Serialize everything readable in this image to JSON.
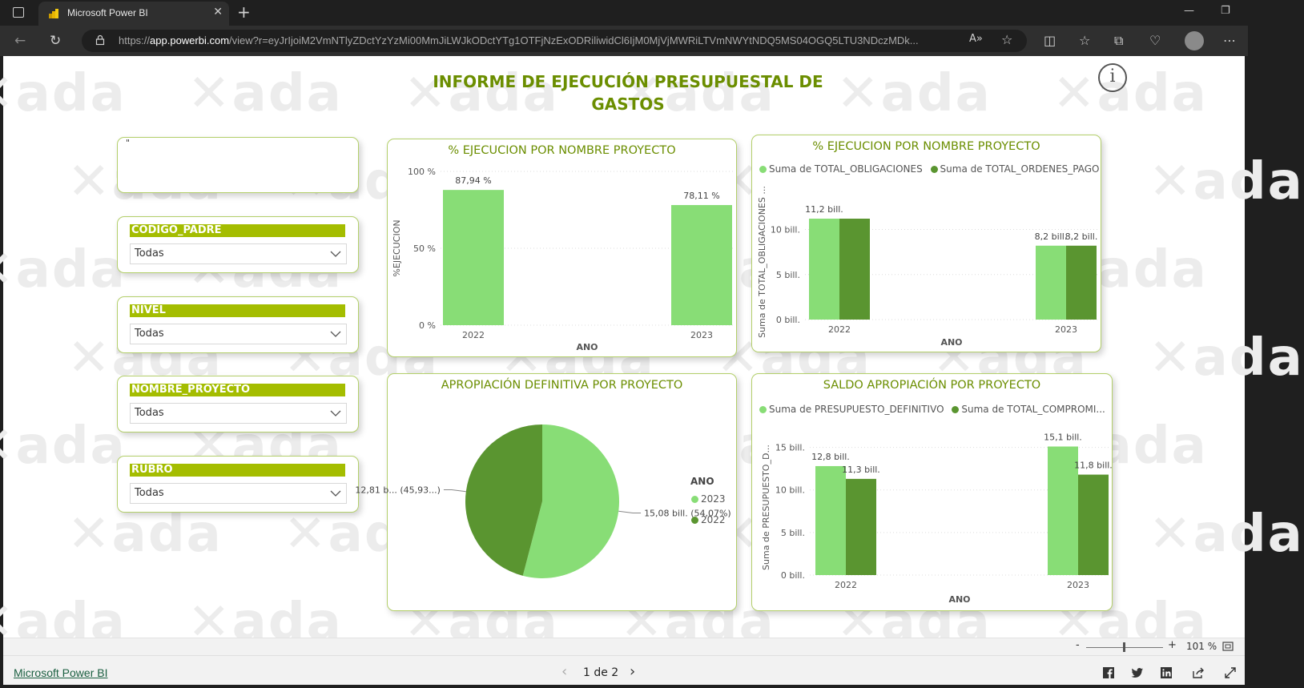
{
  "browser": {
    "tab_title": "Microsoft Power BI",
    "url_prefix": "https://",
    "url_host": "app.powerbi.com",
    "url_rest": "/view?r=eyJrIjoiM2VmNTlyZDctYzYzMi00MmJiLWJkODctYTg1OTFjNzExODRiliwidCl6IjM0MjVjMWRiLTVmNWYtNDQ5MS04OGQ5LTU3NDczMDk..."
  },
  "report": {
    "title_line1": "INFORME DE EJECUCIÓN PRESUPUESTAL DE",
    "title_line2": "GASTOS",
    "info_glyph": "i",
    "watermark": "ada",
    "text_box_content": "\""
  },
  "slicers": [
    {
      "title": "CODIGO_PADRE",
      "value": "Todas"
    },
    {
      "title": "NIVEL",
      "value": "Todas"
    },
    {
      "title": "NOMBRE_PROYECTO",
      "value": "Todas"
    },
    {
      "title": "RUBRO",
      "value": "Todas"
    }
  ],
  "colors": {
    "light_green": "#88dd76",
    "dark_green": "#5a9530",
    "title_green": "#6b8e00",
    "slicer_header": "#a4bd00"
  },
  "chart_data": [
    {
      "type": "bar",
      "title": "% EJECUCION POR NOMBRE PROYECTO",
      "xlabel": "ANO",
      "ylabel": "%EJECUCION",
      "categories": [
        "2022",
        "2023"
      ],
      "values": [
        87.94,
        78.11
      ],
      "data_labels": [
        "87,94 %",
        "78,11 %"
      ],
      "y_ticks": [
        "0 %",
        "50 %",
        "100 %"
      ],
      "ylim": [
        0,
        100
      ],
      "grid": true
    },
    {
      "type": "bar",
      "title": "% EJECUCION POR NOMBRE PROYECTO",
      "xlabel": "ANO",
      "ylabel": "Suma de TOTAL_OBLIGACIONES ...",
      "categories": [
        "2022",
        "2023"
      ],
      "series": [
        {
          "name": "Suma de TOTAL_OBLIGACIONES",
          "values": [
            11.2,
            8.2
          ],
          "labels": [
            "11,2 bill.",
            "8,2 bill."
          ]
        },
        {
          "name": "Suma de TOTAL_ORDENES_PAGO",
          "values": [
            11.2,
            8.2
          ],
          "labels": [
            "",
            "8,2 bill."
          ]
        }
      ],
      "y_ticks": [
        "0 bill.",
        "5 bill.",
        "10 bill."
      ],
      "ylim": [
        0,
        12.8
      ],
      "legend": "top-left",
      "grid": true
    },
    {
      "type": "pie",
      "title": "APROPIACIÓN DEFINITIVA POR PROYECTO",
      "legend_title": "ANO",
      "slices": [
        {
          "name": "2023",
          "value": 15.08,
          "percent": 54.07,
          "label": "15,08 bill. (54,07%)"
        },
        {
          "name": "2022",
          "value": 12.81,
          "percent": 45.93,
          "label": "12,81 b... (45,93...)"
        }
      ],
      "legend": "right"
    },
    {
      "type": "bar",
      "title": "SALDO APROPIACIÓN POR PROYECTO",
      "xlabel": "ANO",
      "ylabel": "Suma de PRESUPUESTO_D...",
      "categories": [
        "2022",
        "2023"
      ],
      "series": [
        {
          "name": "Suma de PRESUPUESTO_DEFINITIVO",
          "values": [
            12.8,
            15.1
          ],
          "labels": [
            "12,8 bill.",
            "15,1 bill."
          ]
        },
        {
          "name": "Suma de TOTAL_COMPROMI...",
          "values": [
            11.3,
            11.8
          ],
          "labels": [
            "11,3 bill.",
            "11,8 bill."
          ]
        }
      ],
      "y_ticks": [
        "0 bill.",
        "5 bill.",
        "10 bill.",
        "15 bill."
      ],
      "ylim": [
        0,
        15.9
      ],
      "legend": "top-left",
      "grid": true
    }
  ],
  "zoom": {
    "minus": "-",
    "plus": "+",
    "level": "101 %"
  },
  "footer": {
    "link": "Microsoft Power BI",
    "page_indicator": "1 de 2",
    "prev": "‹",
    "next": "›"
  }
}
